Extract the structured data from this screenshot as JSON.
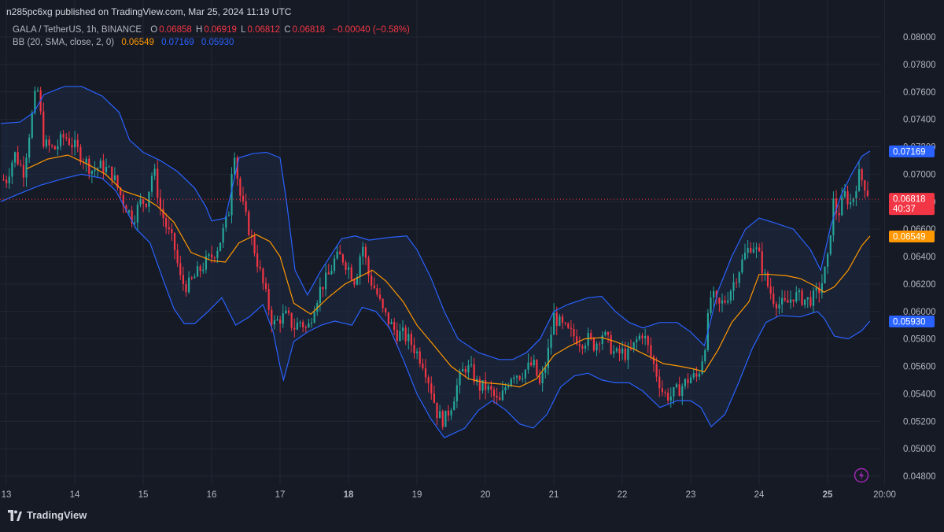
{
  "header": {
    "published_line": "n285pc6xg published on TradingView.com, Mar 25, 2024 11:19 UTC"
  },
  "legend": {
    "symbol": "GALA / TetherUS, 1h, BINANCE",
    "o_label": "O",
    "o_value": "0.06858",
    "h_label": "H",
    "h_value": "0.06919",
    "l_label": "L",
    "l_value": "0.06812",
    "c_label": "C",
    "c_value": "0.06818",
    "change": "−0.00040 (−0.58%)",
    "bb_label": "BB (20, SMA, close, 2, 0)",
    "bb_basis": "0.06549",
    "bb_upper": "0.07169",
    "bb_lower": "0.05930"
  },
  "footer": {
    "brand": "TradingView"
  },
  "icons": {
    "bolt": "lightning-bolt-icon",
    "logo": "tradingview-logo-icon"
  },
  "colors": {
    "background": "#161a25",
    "up": "#26a69a",
    "down": "#f23645",
    "basis": "#ff9800",
    "bands": "#2962ff",
    "band_fill": "#1f2a44",
    "grid": "#232733"
  },
  "chart_data": {
    "type": "candlestick",
    "symbol": "GALA / TetherUS",
    "interval": "1h",
    "exchange": "BINANCE",
    "ylim": [
      0.0475,
      0.081
    ],
    "y_ticks": [
      "0.08000",
      "0.07800",
      "0.07600",
      "0.07400",
      "0.07200",
      "0.07000",
      "0.06800",
      "0.06600",
      "0.06400",
      "0.06200",
      "0.06000",
      "0.05800",
      "0.05600",
      "0.05400",
      "0.05200",
      "0.05000",
      "0.04800"
    ],
    "x_range_days": [
      12.9,
      26.3
    ],
    "x_ticks": [
      {
        "day": 13,
        "label": "13"
      },
      {
        "day": 14,
        "label": "14"
      },
      {
        "day": 15,
        "label": "15"
      },
      {
        "day": 16,
        "label": "16"
      },
      {
        "day": 17,
        "label": "17"
      },
      {
        "day": 18,
        "label": "18",
        "bold": true
      },
      {
        "day": 19,
        "label": "19"
      },
      {
        "day": 20,
        "label": "20"
      },
      {
        "day": 21,
        "label": "21"
      },
      {
        "day": 22,
        "label": "22"
      },
      {
        "day": 23,
        "label": "23"
      },
      {
        "day": 24,
        "label": "24"
      },
      {
        "day": 25,
        "label": "25",
        "bold": true
      },
      {
        "day": 25.8333,
        "label": "20:00"
      }
    ],
    "last_price": 0.06818,
    "price_labels": [
      {
        "text": "0.07169",
        "value": 0.07169,
        "color": "#2962ff"
      },
      {
        "text": "0.06818",
        "value": 0.06818,
        "color": "#f23645",
        "sub": "40:37"
      },
      {
        "text": "0.06549",
        "value": 0.06549,
        "color": "#ff9800"
      },
      {
        "text": "0.05930",
        "value": 0.0593,
        "color": "#2962ff"
      }
    ],
    "close_path": [
      [
        13.0,
        0.0696
      ],
      [
        13.12,
        0.0715
      ],
      [
        13.25,
        0.0702
      ],
      [
        13.35,
        0.0735
      ],
      [
        13.45,
        0.0765
      ],
      [
        13.55,
        0.0722
      ],
      [
        13.7,
        0.0718
      ],
      [
        13.85,
        0.0728
      ],
      [
        14.0,
        0.072
      ],
      [
        14.12,
        0.0712
      ],
      [
        14.25,
        0.0703
      ],
      [
        14.4,
        0.0706
      ],
      [
        14.55,
        0.07
      ],
      [
        14.7,
        0.0681
      ],
      [
        14.85,
        0.0667
      ],
      [
        14.95,
        0.0679
      ],
      [
        15.05,
        0.0681
      ],
      [
        15.15,
        0.0705
      ],
      [
        15.25,
        0.0675
      ],
      [
        15.35,
        0.066
      ],
      [
        15.45,
        0.0648
      ],
      [
        15.55,
        0.0622
      ],
      [
        15.65,
        0.0618
      ],
      [
        15.75,
        0.0625
      ],
      [
        15.9,
        0.0635
      ],
      [
        16.0,
        0.064
      ],
      [
        16.1,
        0.0648
      ],
      [
        16.18,
        0.066
      ],
      [
        16.25,
        0.0672
      ],
      [
        16.32,
        0.0724
      ],
      [
        16.4,
        0.0688
      ],
      [
        16.5,
        0.0668
      ],
      [
        16.6,
        0.065
      ],
      [
        16.7,
        0.063
      ],
      [
        16.8,
        0.061
      ],
      [
        16.9,
        0.059
      ],
      [
        17.0,
        0.0595
      ],
      [
        17.1,
        0.0597
      ],
      [
        17.2,
        0.0588
      ],
      [
        17.3,
        0.0593
      ],
      [
        17.4,
        0.0586
      ],
      [
        17.5,
        0.0605
      ],
      [
        17.6,
        0.0618
      ],
      [
        17.7,
        0.0625
      ],
      [
        17.8,
        0.0638
      ],
      [
        17.9,
        0.064
      ],
      [
        18.0,
        0.0632
      ],
      [
        18.1,
        0.0622
      ],
      [
        18.2,
        0.065
      ],
      [
        18.3,
        0.0625
      ],
      [
        18.4,
        0.0615
      ],
      [
        18.5,
        0.06
      ],
      [
        18.6,
        0.0592
      ],
      [
        18.7,
        0.0584
      ],
      [
        18.8,
        0.0583
      ],
      [
        18.9,
        0.0578
      ],
      [
        19.0,
        0.057
      ],
      [
        19.1,
        0.0562
      ],
      [
        19.2,
        0.0545
      ],
      [
        19.3,
        0.0525
      ],
      [
        19.4,
        0.052
      ],
      [
        19.5,
        0.0532
      ],
      [
        19.6,
        0.0548
      ],
      [
        19.7,
        0.056
      ],
      [
        19.8,
        0.0556
      ],
      [
        19.9,
        0.0545
      ],
      [
        20.0,
        0.0545
      ],
      [
        20.1,
        0.054
      ],
      [
        20.2,
        0.0532
      ],
      [
        20.3,
        0.0546
      ],
      [
        20.4,
        0.0556
      ],
      [
        20.5,
        0.0554
      ],
      [
        20.6,
        0.0558
      ],
      [
        20.7,
        0.0562
      ],
      [
        20.8,
        0.0545
      ],
      [
        20.9,
        0.0565
      ],
      [
        21.0,
        0.0597
      ],
      [
        21.1,
        0.059
      ],
      [
        21.2,
        0.0585
      ],
      [
        21.3,
        0.0582
      ],
      [
        21.4,
        0.0578
      ],
      [
        21.5,
        0.058
      ],
      [
        21.6,
        0.0575
      ],
      [
        21.7,
        0.0585
      ],
      [
        21.8,
        0.0577
      ],
      [
        21.9,
        0.0568
      ],
      [
        22.0,
        0.057
      ],
      [
        22.1,
        0.0568
      ],
      [
        22.2,
        0.0578
      ],
      [
        22.3,
        0.0585
      ],
      [
        22.4,
        0.057
      ],
      [
        22.5,
        0.0555
      ],
      [
        22.6,
        0.054
      ],
      [
        22.7,
        0.0538
      ],
      [
        22.8,
        0.0542
      ],
      [
        22.9,
        0.0547
      ],
      [
        23.0,
        0.0552
      ],
      [
        23.1,
        0.0552
      ],
      [
        23.2,
        0.0573
      ],
      [
        23.3,
        0.0613
      ],
      [
        23.4,
        0.0603
      ],
      [
        23.5,
        0.0608
      ],
      [
        23.6,
        0.0618
      ],
      [
        23.7,
        0.063
      ],
      [
        23.8,
        0.0642
      ],
      [
        23.9,
        0.065
      ],
      [
        24.0,
        0.064
      ],
      [
        24.1,
        0.0622
      ],
      [
        24.2,
        0.061
      ],
      [
        24.3,
        0.0605
      ],
      [
        24.4,
        0.0605
      ],
      [
        24.5,
        0.0612
      ],
      [
        24.6,
        0.061
      ],
      [
        24.7,
        0.0608
      ],
      [
        24.8,
        0.061
      ],
      [
        24.9,
        0.0618
      ],
      [
        25.0,
        0.0636
      ],
      [
        25.08,
        0.068
      ],
      [
        25.15,
        0.067
      ],
      [
        25.25,
        0.0685
      ],
      [
        25.35,
        0.0678
      ],
      [
        25.45,
        0.07
      ],
      [
        25.55,
        0.0692
      ],
      [
        25.62,
        0.0682
      ]
    ],
    "bb_upper_path": [
      [
        12.92,
        0.0737
      ],
      [
        13.2,
        0.0738
      ],
      [
        13.4,
        0.0745
      ],
      [
        13.55,
        0.0758
      ],
      [
        13.85,
        0.0764
      ],
      [
        14.1,
        0.0764
      ],
      [
        14.4,
        0.0757
      ],
      [
        14.65,
        0.0745
      ],
      [
        14.8,
        0.0725
      ],
      [
        15.0,
        0.0716
      ],
      [
        15.25,
        0.071
      ],
      [
        15.5,
        0.0702
      ],
      [
        15.75,
        0.069
      ],
      [
        15.92,
        0.0676
      ],
      [
        16.0,
        0.0666
      ],
      [
        16.2,
        0.0668
      ],
      [
        16.4,
        0.0712
      ],
      [
        16.6,
        0.0715
      ],
      [
        16.8,
        0.0716
      ],
      [
        17.0,
        0.0712
      ],
      [
        17.1,
        0.0678
      ],
      [
        17.22,
        0.063
      ],
      [
        17.4,
        0.0612
      ],
      [
        17.6,
        0.063
      ],
      [
        17.9,
        0.0653
      ],
      [
        18.1,
        0.0655
      ],
      [
        18.3,
        0.0652
      ],
      [
        18.6,
        0.0654
      ],
      [
        18.85,
        0.0655
      ],
      [
        19.0,
        0.0645
      ],
      [
        19.2,
        0.0625
      ],
      [
        19.4,
        0.06
      ],
      [
        19.6,
        0.058
      ],
      [
        19.9,
        0.057
      ],
      [
        20.2,
        0.0565
      ],
      [
        20.4,
        0.0565
      ],
      [
        20.6,
        0.057
      ],
      [
        20.8,
        0.058
      ],
      [
        21.0,
        0.06
      ],
      [
        21.2,
        0.0605
      ],
      [
        21.5,
        0.061
      ],
      [
        21.7,
        0.0611
      ],
      [
        21.9,
        0.06
      ],
      [
        22.1,
        0.0592
      ],
      [
        22.3,
        0.0588
      ],
      [
        22.55,
        0.0592
      ],
      [
        22.8,
        0.0592
      ],
      [
        23.0,
        0.0585
      ],
      [
        23.2,
        0.0575
      ],
      [
        23.4,
        0.0615
      ],
      [
        23.6,
        0.064
      ],
      [
        23.8,
        0.066
      ],
      [
        24.0,
        0.0668
      ],
      [
        24.2,
        0.0665
      ],
      [
        24.5,
        0.066
      ],
      [
        24.75,
        0.0645
      ],
      [
        24.9,
        0.063
      ],
      [
        25.05,
        0.0663
      ],
      [
        25.2,
        0.0685
      ],
      [
        25.35,
        0.07
      ],
      [
        25.5,
        0.0713
      ],
      [
        25.62,
        0.07169
      ]
    ],
    "bb_lower_path": [
      [
        12.92,
        0.068
      ],
      [
        13.2,
        0.0686
      ],
      [
        13.5,
        0.0692
      ],
      [
        13.85,
        0.0697
      ],
      [
        14.1,
        0.07
      ],
      [
        14.4,
        0.0697
      ],
      [
        14.6,
        0.0688
      ],
      [
        14.9,
        0.066
      ],
      [
        15.1,
        0.065
      ],
      [
        15.3,
        0.0622
      ],
      [
        15.45,
        0.0602
      ],
      [
        15.6,
        0.0591
      ],
      [
        15.75,
        0.0591
      ],
      [
        15.95,
        0.06
      ],
      [
        16.15,
        0.061
      ],
      [
        16.35,
        0.059
      ],
      [
        16.55,
        0.0596
      ],
      [
        16.75,
        0.0605
      ],
      [
        16.9,
        0.0585
      ],
      [
        17.0,
        0.056
      ],
      [
        17.05,
        0.055
      ],
      [
        17.2,
        0.0578
      ],
      [
        17.4,
        0.0585
      ],
      [
        17.6,
        0.059
      ],
      [
        17.8,
        0.0593
      ],
      [
        18.05,
        0.059
      ],
      [
        18.2,
        0.0603
      ],
      [
        18.4,
        0.06
      ],
      [
        18.6,
        0.0588
      ],
      [
        18.8,
        0.0565
      ],
      [
        19.0,
        0.054
      ],
      [
        19.2,
        0.0522
      ],
      [
        19.4,
        0.0508
      ],
      [
        19.7,
        0.0515
      ],
      [
        19.9,
        0.0528
      ],
      [
        20.1,
        0.0535
      ],
      [
        20.3,
        0.0528
      ],
      [
        20.5,
        0.0518
      ],
      [
        20.7,
        0.0515
      ],
      [
        20.9,
        0.0525
      ],
      [
        21.1,
        0.0545
      ],
      [
        21.3,
        0.0553
      ],
      [
        21.5,
        0.0555
      ],
      [
        21.7,
        0.055
      ],
      [
        21.9,
        0.0548
      ],
      [
        22.1,
        0.0548
      ],
      [
        22.3,
        0.0542
      ],
      [
        22.55,
        0.053
      ],
      [
        22.8,
        0.0535
      ],
      [
        23.0,
        0.0535
      ],
      [
        23.15,
        0.053
      ],
      [
        23.3,
        0.0516
      ],
      [
        23.5,
        0.0525
      ],
      [
        23.7,
        0.0548
      ],
      [
        23.9,
        0.0573
      ],
      [
        24.1,
        0.0592
      ],
      [
        24.3,
        0.0597
      ],
      [
        24.6,
        0.0596
      ],
      [
        24.85,
        0.06
      ],
      [
        24.95,
        0.0595
      ],
      [
        25.1,
        0.0582
      ],
      [
        25.3,
        0.058
      ],
      [
        25.5,
        0.0586
      ],
      [
        25.62,
        0.0593
      ]
    ],
    "bb_basis_path": [
      [
        13.3,
        0.0704
      ],
      [
        13.6,
        0.0711
      ],
      [
        13.9,
        0.0714
      ],
      [
        14.2,
        0.0707
      ],
      [
        14.45,
        0.07
      ],
      [
        14.7,
        0.0688
      ],
      [
        15.0,
        0.0683
      ],
      [
        15.2,
        0.0677
      ],
      [
        15.45,
        0.0665
      ],
      [
        15.7,
        0.0643
      ],
      [
        16.0,
        0.0637
      ],
      [
        16.2,
        0.0636
      ],
      [
        16.4,
        0.065
      ],
      [
        16.65,
        0.0656
      ],
      [
        16.85,
        0.0651
      ],
      [
        17.0,
        0.064
      ],
      [
        17.2,
        0.0606
      ],
      [
        17.45,
        0.0598
      ],
      [
        17.7,
        0.061
      ],
      [
        17.95,
        0.062
      ],
      [
        18.15,
        0.0625
      ],
      [
        18.35,
        0.063
      ],
      [
        18.55,
        0.0622
      ],
      [
        18.8,
        0.0607
      ],
      [
        19.0,
        0.059
      ],
      [
        19.25,
        0.0575
      ],
      [
        19.5,
        0.056
      ],
      [
        19.75,
        0.0551
      ],
      [
        20.0,
        0.0548
      ],
      [
        20.25,
        0.0547
      ],
      [
        20.5,
        0.0545
      ],
      [
        20.75,
        0.0551
      ],
      [
        21.0,
        0.0568
      ],
      [
        21.2,
        0.0574
      ],
      [
        21.45,
        0.058
      ],
      [
        21.7,
        0.0581
      ],
      [
        21.9,
        0.0578
      ],
      [
        22.15,
        0.0573
      ],
      [
        22.4,
        0.0567
      ],
      [
        22.6,
        0.0562
      ],
      [
        22.85,
        0.056
      ],
      [
        23.05,
        0.0558
      ],
      [
        23.2,
        0.0556
      ],
      [
        23.4,
        0.0572
      ],
      [
        23.6,
        0.0592
      ],
      [
        23.85,
        0.0607
      ],
      [
        24.0,
        0.0627
      ],
      [
        24.15,
        0.0627
      ],
      [
        24.4,
        0.0626
      ],
      [
        24.6,
        0.0624
      ],
      [
        24.8,
        0.0619
      ],
      [
        24.95,
        0.0614
      ],
      [
        25.1,
        0.0618
      ],
      [
        25.3,
        0.063
      ],
      [
        25.5,
        0.0648
      ],
      [
        25.62,
        0.06549
      ]
    ]
  }
}
